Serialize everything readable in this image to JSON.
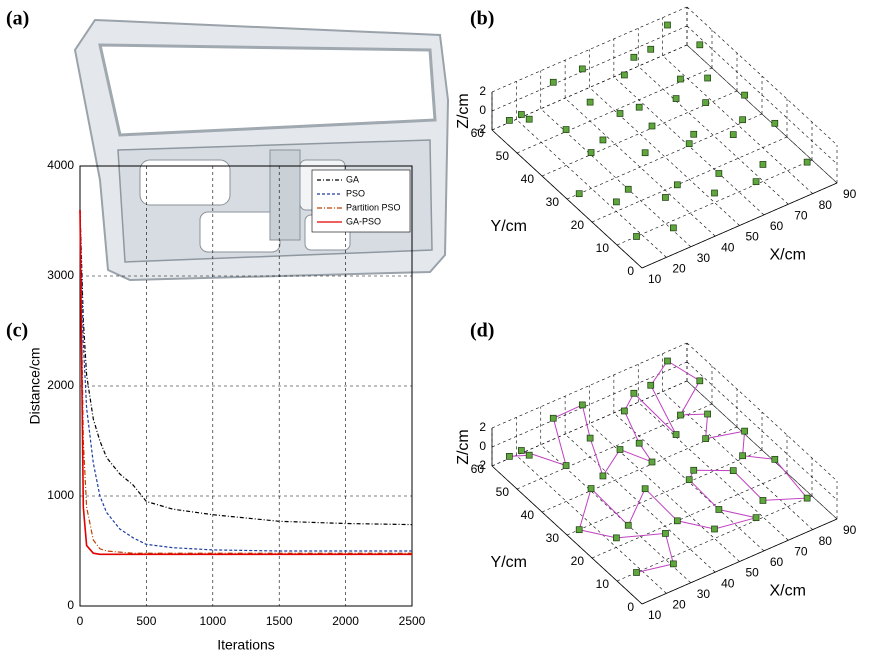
{
  "panel_labels": [
    "(a)",
    "(b)",
    "(c)",
    "(d)"
  ],
  "chart_data": [
    {
      "type": "scatter3d",
      "xlabel": "X/cm",
      "ylabel": "Y/cm",
      "zlabel": "Z/cm",
      "xlim": [
        10,
        90
      ],
      "ylim": [
        0,
        60
      ],
      "zlim": [
        -2,
        2
      ],
      "xticks": [
        10,
        20,
        30,
        40,
        50,
        60,
        70,
        80,
        90
      ],
      "yticks": [
        0,
        10,
        20,
        30,
        40,
        50,
        60
      ],
      "zticks": [
        -2,
        0,
        2
      ],
      "color": "#5fa63c",
      "x": [
        12,
        15,
        20,
        25,
        30,
        35,
        40,
        45,
        50,
        55,
        60,
        65,
        70,
        75,
        80,
        85,
        88,
        15,
        20,
        25,
        30,
        35,
        40,
        45,
        50,
        55,
        60,
        65,
        70,
        75,
        80,
        85,
        88,
        18,
        28,
        42,
        52,
        62,
        72,
        82
      ],
      "y": [
        55,
        50,
        58,
        45,
        55,
        40,
        50,
        58,
        35,
        45,
        52,
        40,
        55,
        48,
        42,
        50,
        35,
        30,
        20,
        35,
        25,
        15,
        28,
        20,
        10,
        25,
        18,
        8,
        22,
        15,
        28,
        20,
        10,
        10,
        5,
        40,
        48,
        30,
        35,
        60
      ],
      "z": [
        0,
        1,
        -1,
        0,
        2,
        -1,
        0,
        1,
        0,
        -1,
        2,
        0,
        1,
        -1,
        0,
        1,
        -1,
        -2,
        -1,
        0,
        -2,
        -1,
        0,
        -2,
        -1,
        0,
        -2,
        -1,
        0,
        -2,
        -1,
        0,
        -2,
        -2,
        -1,
        1,
        2,
        -1,
        0,
        1
      ]
    },
    {
      "type": "line",
      "xlabel": "Iterations",
      "ylabel": "Distance/cm",
      "xlim": [
        0,
        2500
      ],
      "ylim": [
        0,
        4000
      ],
      "xticks": [
        0,
        500,
        1000,
        1500,
        2000,
        2500
      ],
      "yticks": [
        0,
        1000,
        2000,
        3000,
        4000
      ],
      "grid": true,
      "legend": "upper right",
      "x": [
        0,
        25,
        50,
        100,
        150,
        200,
        300,
        400,
        500,
        700,
        1000,
        1500,
        2000,
        2500
      ],
      "series": [
        {
          "name": "GA",
          "color": "#000000",
          "values": [
            3600,
            2600,
            2100,
            1700,
            1500,
            1350,
            1200,
            1100,
            950,
            880,
            830,
            770,
            750,
            740
          ]
        },
        {
          "name": "PSO",
          "color": "#1f3fa0",
          "values": [
            3600,
            2400,
            1800,
            1300,
            1000,
            850,
            700,
            620,
            560,
            530,
            510,
            500,
            500,
            500
          ]
        },
        {
          "name": "Partition PSO",
          "color": "#c04000",
          "values": [
            3600,
            1500,
            900,
            600,
            520,
            500,
            490,
            480,
            480,
            480,
            480,
            480,
            480,
            480
          ]
        },
        {
          "name": "GA-PSO",
          "color": "#e00000",
          "values": [
            3600,
            900,
            550,
            480,
            470,
            470,
            470,
            470,
            470,
            470,
            470,
            470,
            470,
            470
          ]
        }
      ]
    },
    {
      "type": "path3d",
      "xlabel": "X/cm",
      "ylabel": "Y/cm",
      "zlabel": "Z/cm",
      "xlim": [
        10,
        90
      ],
      "ylim": [
        0,
        60
      ],
      "zlim": [
        -2,
        2
      ],
      "xticks": [
        10,
        20,
        30,
        40,
        50,
        60,
        70,
        80,
        90
      ],
      "yticks": [
        0,
        10,
        20,
        30,
        40,
        50,
        60
      ],
      "zticks": [
        -2,
        0,
        2
      ],
      "color": "#5fa63c",
      "line_color": "#c040c0",
      "x": [
        18,
        28,
        35,
        20,
        15,
        25,
        30,
        40,
        45,
        50,
        65,
        60,
        55,
        62,
        70,
        75,
        88,
        85,
        80,
        88,
        72,
        80,
        75,
        85,
        82,
        70,
        65,
        60,
        52,
        55,
        50,
        42,
        35,
        40,
        45,
        30,
        25,
        20,
        15,
        12
      ],
      "y": [
        10,
        5,
        15,
        20,
        30,
        35,
        25,
        28,
        20,
        10,
        8,
        18,
        25,
        30,
        22,
        15,
        10,
        20,
        28,
        35,
        35,
        42,
        48,
        50,
        60,
        55,
        40,
        52,
        48,
        45,
        35,
        40,
        40,
        50,
        58,
        55,
        45,
        58,
        50,
        55
      ],
      "z": [
        -2,
        -1,
        -1,
        -1,
        -2,
        0,
        -2,
        0,
        -2,
        -1,
        -1,
        -2,
        0,
        -1,
        0,
        -2,
        -2,
        0,
        -1,
        -1,
        0,
        0,
        -1,
        1,
        1,
        1,
        0,
        2,
        2,
        -1,
        0,
        1,
        -1,
        0,
        1,
        2,
        0,
        -1,
        1,
        0
      ]
    }
  ]
}
